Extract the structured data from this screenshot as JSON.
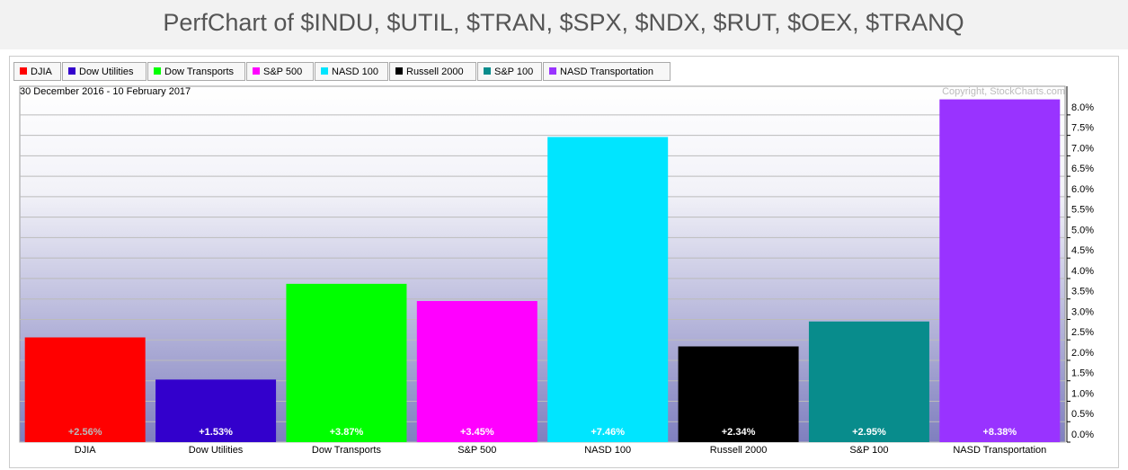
{
  "chart_data": {
    "type": "bar",
    "title": "PerfChart of $INDU, $UTIL, $TRAN, $SPX, $NDX, $RUT, $OEX, $TRANQ",
    "subtitle": "30 December 2016 - 10 February 2017",
    "copyright": "Copyright, StockCharts.com",
    "categories": [
      "DJIA",
      "Dow Utilities",
      "Dow Transports",
      "S&P 500",
      "NASD 100",
      "Russell 2000",
      "S&P 100",
      "NASD Transportation"
    ],
    "values": [
      2.56,
      1.53,
      3.87,
      3.45,
      7.46,
      2.34,
      2.95,
      8.38
    ],
    "value_labels": [
      "+2.56%",
      "+1.53%",
      "+3.87%",
      "+3.45%",
      "+7.46%",
      "+2.34%",
      "+2.95%",
      "+8.38%"
    ],
    "colors": [
      "#ff0000",
      "#3300cc",
      "#00ff00",
      "#ff00ff",
      "#00e5ff",
      "#000000",
      "#088c8c",
      "#9933ff"
    ],
    "ylim": [
      0,
      8.7
    ],
    "yticks": [
      {
        "value": 0,
        "label": "0.0%"
      },
      {
        "value": 0.5,
        "label": "0.5%"
      },
      {
        "value": 1,
        "label": "1.0%"
      },
      {
        "value": 1.5,
        "label": "1.5%"
      },
      {
        "value": 2,
        "label": "2.0%"
      },
      {
        "value": 2.5,
        "label": "2.5%"
      },
      {
        "value": 3,
        "label": "3.0%"
      },
      {
        "value": 3.5,
        "label": "3.5%"
      },
      {
        "value": 4,
        "label": "4.0%"
      },
      {
        "value": 4.5,
        "label": "4.5%"
      },
      {
        "value": 5,
        "label": "5.0%"
      },
      {
        "value": 5.5,
        "label": "5.5%"
      },
      {
        "value": 6,
        "label": "6.0%"
      },
      {
        "value": 6.5,
        "label": "6.5%"
      },
      {
        "value": 7,
        "label": "7.0%"
      },
      {
        "value": 7.5,
        "label": "7.5%"
      },
      {
        "value": 8,
        "label": "8.0%"
      }
    ],
    "grid": true,
    "legend": "top-left"
  }
}
